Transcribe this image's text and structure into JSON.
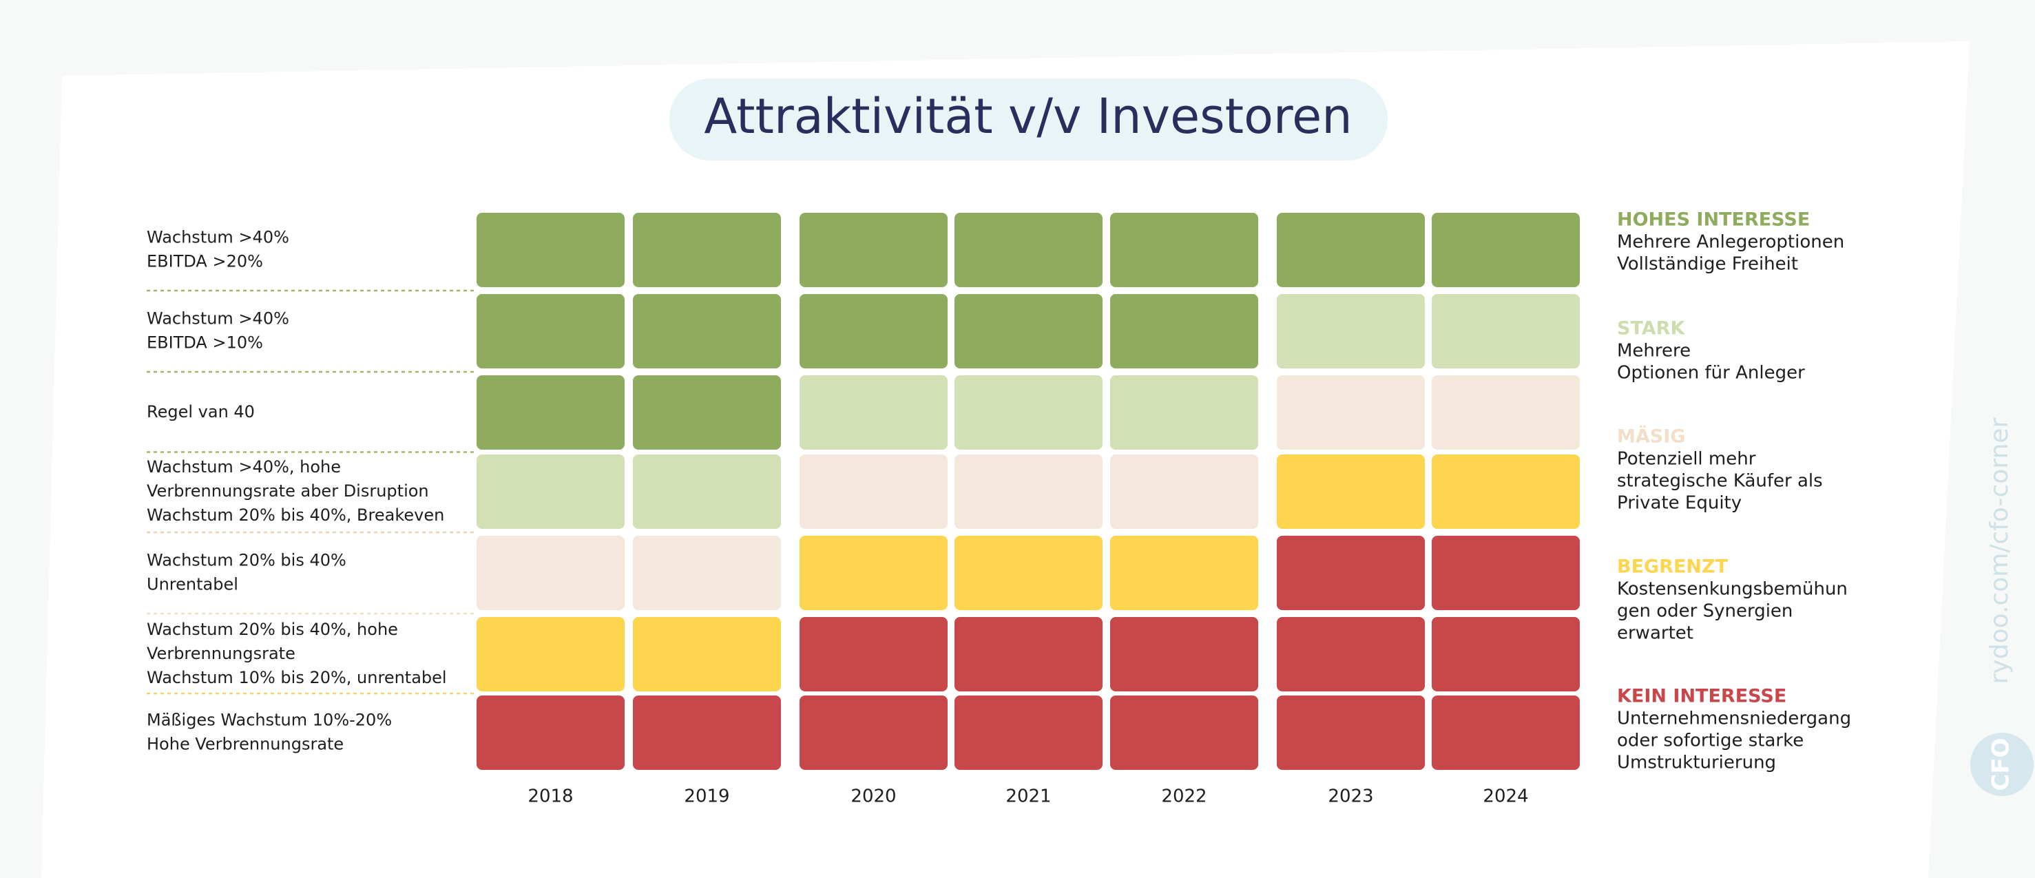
{
  "title": "Attraktivität v/v Investoren",
  "grid": {
    "columns": [
      "2018",
      "2019",
      "2020",
      "2021",
      "2022",
      "2023",
      "2024"
    ],
    "rows": [
      {
        "label": [
          "Wachstum >40%",
          "EBITDA >20%"
        ],
        "cells": [
          "#8fab5e",
          "#8fab5e",
          "#8fab5e",
          "#8fab5e",
          "#8fab5e",
          "#8fab5e",
          "#8fab5e"
        ]
      },
      {
        "label": [
          "Wachstum >40%",
          "EBITDA >10%"
        ],
        "cells": [
          "#8fab5e",
          "#8fab5e",
          "#8fab5e",
          "#8fab5e",
          "#8fab5e",
          "#d3dfb5",
          "#d3dfb5"
        ]
      },
      {
        "label": [
          "Regel van 40"
        ],
        "cells": [
          "#8fab5e",
          "#8fab5e",
          "#d3dfb5",
          "#d3dfb5",
          "#d3dfb5",
          "#f4e8dc",
          "#f4e8dc"
        ]
      },
      {
        "label": [
          "Wachstum >40%, hohe",
          "Verbrennungsrate aber Disruption",
          "Wachstum 20% bis 40%, Breakeven"
        ],
        "cells": [
          "#d3dfb5",
          "#d3dfb5",
          "#f4e8dc",
          "#f4e8dc",
          "#f4e8dc",
          "#fdd54f",
          "#fdd54f"
        ]
      },
      {
        "label": [
          "Wachstum 20% bis 40%",
          "Unrentabel"
        ],
        "cells": [
          "#f4e8dc",
          "#f4e8dc",
          "#fdd54f",
          "#fdd54f",
          "#fdd54f",
          "#c8474a",
          "#c8474a"
        ]
      },
      {
        "label": [
          "Wachstum 20% bis 40%, hohe",
          "Verbrennungsrate",
          "Wachstum 10% bis 20%, unrentabel"
        ],
        "cells": [
          "#fdd54f",
          "#fdd54f",
          "#c8474a",
          "#c8474a",
          "#c8474a",
          "#c8474a",
          "#c8474a"
        ]
      },
      {
        "label": [
          "Mäßiges Wachstum 10%-20%",
          "Hohe Verbrennungsrate"
        ],
        "cells": [
          "#c8474a",
          "#c8474a",
          "#c8474a",
          "#c8474a",
          "#c8474a",
          "#c8474a",
          "#c8474a"
        ]
      }
    ]
  },
  "legend": [
    {
      "name": "HOHES INTERESSE",
      "color": "#8fab5e",
      "lines": [
        "Mehrere Anlegeroptionen",
        "Vollständige Freiheit"
      ]
    },
    {
      "name": "STARK",
      "color": "#cfdcae",
      "lines": [
        "Mehrere",
        "Optionen für Anleger"
      ]
    },
    {
      "name": "MÄSIG",
      "color": "#f1dfca",
      "lines": [
        "Potenziell mehr",
        "strategische Käufer als",
        "Private Equity"
      ]
    },
    {
      "name": "BEGRENZT",
      "color": "#fdd54f",
      "lines": [
        "Kostensenkungsbemühun",
        "gen oder Synergien",
        "erwartet"
      ]
    },
    {
      "name": "KEIN INTERESSE",
      "color": "#c8474a",
      "lines": [
        "Unternehmensniedergang",
        "oder sofortige starke",
        "Umstrukturierung"
      ]
    }
  ],
  "watermark": "rydoo.com/cfo-corner",
  "logo": "CFO"
}
